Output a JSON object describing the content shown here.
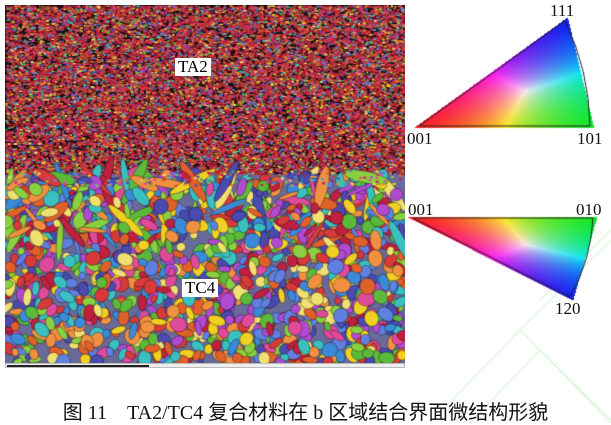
{
  "figure": {
    "labels": {
      "top_region": "TA2",
      "bottom_region": "TC4"
    },
    "ipf_top": {
      "vertices": [
        "001",
        "101",
        "111"
      ]
    },
    "ipf_bottom": {
      "vertices": [
        "001",
        "010",
        "120"
      ]
    },
    "ipf_colors": {
      "001": "#e02020",
      "101": "#70c030",
      "111": "#3050b0"
    },
    "caption": "图 11　TA2/TC4 复合材料在 b 区域结合界面微结构形貌"
  }
}
